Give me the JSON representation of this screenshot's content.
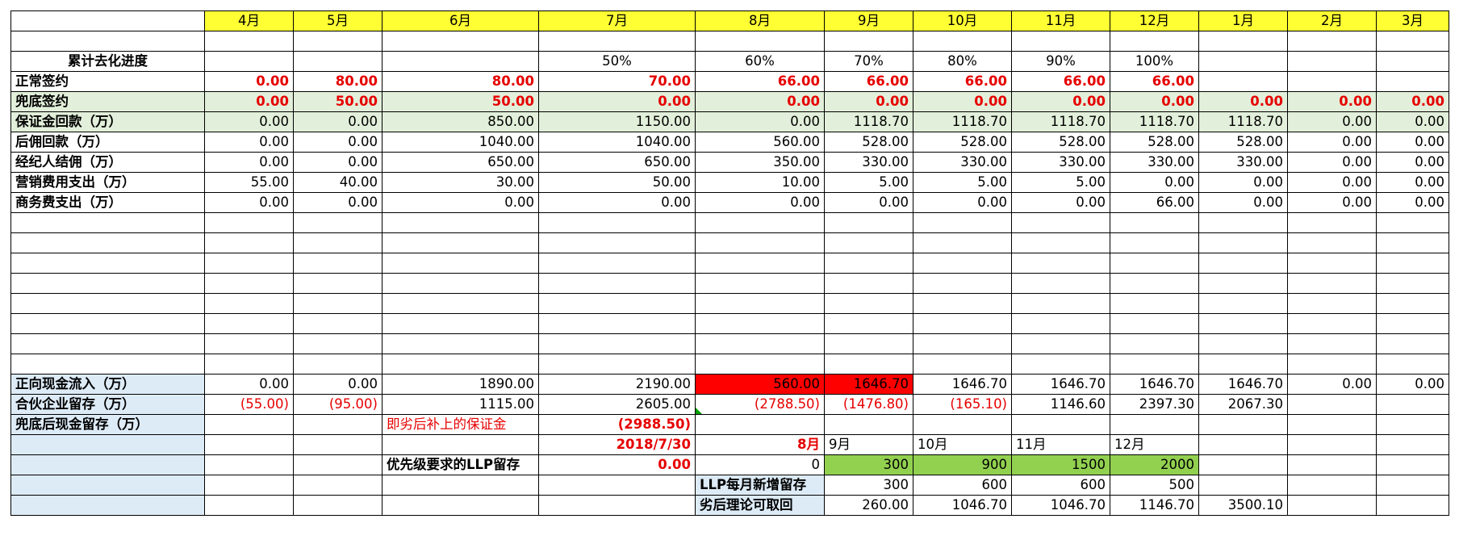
{
  "months": [
    "4月",
    "5月",
    "6月",
    "7月",
    "8月",
    "9月",
    "10月",
    "11月",
    "12月",
    "1月",
    "2月",
    "3月"
  ],
  "progress": {
    "label": "累计去化进度",
    "values": [
      "",
      "",
      "",
      "50%",
      "60%",
      "70%",
      "80%",
      "90%",
      "100%",
      "",
      "",
      ""
    ]
  },
  "rows": [
    {
      "label": "正常签约",
      "values": [
        "0.00",
        "80.00",
        "80.00",
        "70.00",
        "66.00",
        "66.00",
        "66.00",
        "66.00",
        "66.00",
        "",
        "",
        ""
      ]
    },
    {
      "label": "兜底签约",
      "values": [
        "0.00",
        "50.00",
        "50.00",
        "0.00",
        "0.00",
        "0.00",
        "0.00",
        "0.00",
        "0.00",
        "0.00",
        "0.00",
        "0.00"
      ]
    },
    {
      "label": "保证金回款（万）",
      "values": [
        "0.00",
        "0.00",
        "850.00",
        "1150.00",
        "0.00",
        "1118.70",
        "1118.70",
        "1118.70",
        "1118.70",
        "1118.70",
        "0.00",
        "0.00"
      ]
    },
    {
      "label": "后佣回款（万）",
      "values": [
        "0.00",
        "0.00",
        "1040.00",
        "1040.00",
        "560.00",
        "528.00",
        "528.00",
        "528.00",
        "528.00",
        "528.00",
        "0.00",
        "0.00"
      ]
    },
    {
      "label": "经纪人结佣（万）",
      "values": [
        "0.00",
        "0.00",
        "650.00",
        "650.00",
        "350.00",
        "330.00",
        "330.00",
        "330.00",
        "330.00",
        "330.00",
        "0.00",
        "0.00"
      ]
    },
    {
      "label": "营销费用支出（万）",
      "values": [
        "55.00",
        "40.00",
        "30.00",
        "50.00",
        "10.00",
        "5.00",
        "5.00",
        "5.00",
        "0.00",
        "0.00",
        "0.00",
        "0.00"
      ]
    },
    {
      "label": "商务费支出（万）",
      "values": [
        "0.00",
        "0.00",
        "0.00",
        "0.00",
        "0.00",
        "0.00",
        "0.00",
        "0.00",
        "66.00",
        "0.00",
        "0.00",
        "0.00"
      ]
    }
  ],
  "inflow": {
    "label": "正向现金流入（万）",
    "values": [
      "0.00",
      "0.00",
      "1890.00",
      "2190.00",
      "560.00",
      "1646.70",
      "1646.70",
      "1646.70",
      "1646.70",
      "1646.70",
      "0.00",
      "0.00"
    ]
  },
  "retain": {
    "label": "合伙企业留存（万）",
    "values": [
      "(55.00)",
      "(95.00)",
      "1115.00",
      "2605.00",
      "(2788.50)",
      "(1476.80)",
      "(165.10)",
      "1146.60",
      "2397.30",
      "2067.30",
      "",
      ""
    ]
  },
  "backstop": {
    "label": "兜底后现金留存（万）",
    "note": "即劣后补上的保证金",
    "value": "(2988.50)"
  },
  "dates": {
    "d1": "2018/7/30",
    "d2": "8月",
    "m9": "9月",
    "m10": "10月",
    "m11": "11月",
    "m12": "12月"
  },
  "llp": {
    "label": "优先级要求的LLP留存",
    "v7": "0.00",
    "v8": "0",
    "values": [
      "300",
      "900",
      "1500",
      "2000"
    ]
  },
  "llp_new": {
    "label": "LLP每月新增留存",
    "values": [
      "300",
      "600",
      "600",
      "500"
    ]
  },
  "theory": {
    "label": "劣后理论可取回",
    "values": [
      "260.00",
      "1046.70",
      "1046.70",
      "1146.70",
      "3500.10"
    ]
  },
  "colors": {
    "header": "#ffff33",
    "green_row": "#e2efda",
    "label_blue": "#ddebf7",
    "alert_red": "#ff0000",
    "fill_green": "#92d050",
    "text_red": "#e60000"
  }
}
